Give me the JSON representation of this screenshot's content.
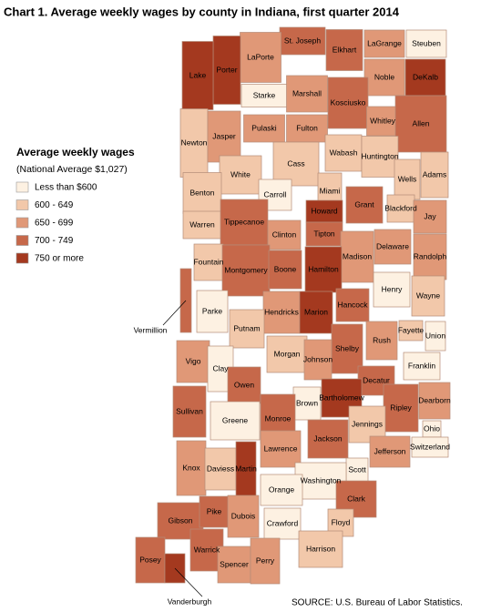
{
  "title": "Chart 1. Average weekly wages by county in Indiana, first quarter 2014",
  "legend": {
    "title": "Average weekly wages",
    "subtitle": "(National Average $1,027)",
    "items": [
      {
        "label": "Less than $600",
        "color": "#fdf1e2"
      },
      {
        "label": "600 - 649",
        "color": "#f2c8aa"
      },
      {
        "label": "650 - 699",
        "color": "#e09877"
      },
      {
        "label": "700 - 749",
        "color": "#c6684a"
      },
      {
        "label": "750 or more",
        "color": "#a4391f"
      }
    ]
  },
  "counties": [
    {
      "name": "Steuben",
      "class": 0
    },
    {
      "name": "LaGrange",
      "class": 2
    },
    {
      "name": "Elkhart",
      "class": 3
    },
    {
      "name": "St. Joseph",
      "class": 3
    },
    {
      "name": "LaPorte",
      "class": 2
    },
    {
      "name": "Porter",
      "class": 4
    },
    {
      "name": "Lake",
      "class": 4
    },
    {
      "name": "Noble",
      "class": 2
    },
    {
      "name": "DeKalb",
      "class": 4
    },
    {
      "name": "Starke",
      "class": 0
    },
    {
      "name": "Marshall",
      "class": 2
    },
    {
      "name": "Kosciusko",
      "class": 3
    },
    {
      "name": "Whitley",
      "class": 2
    },
    {
      "name": "Allen",
      "class": 3
    },
    {
      "name": "Newton",
      "class": 1
    },
    {
      "name": "Jasper",
      "class": 2
    },
    {
      "name": "Pulaski",
      "class": 2
    },
    {
      "name": "Fulton",
      "class": 2
    },
    {
      "name": "Wabash",
      "class": 1
    },
    {
      "name": "Huntington",
      "class": 1
    },
    {
      "name": "Adams",
      "class": 1
    },
    {
      "name": "Wells",
      "class": 1
    },
    {
      "name": "White",
      "class": 1
    },
    {
      "name": "Cass",
      "class": 1
    },
    {
      "name": "Miami",
      "class": 1
    },
    {
      "name": "Benton",
      "class": 1
    },
    {
      "name": "Carroll",
      "class": 0
    },
    {
      "name": "Howard",
      "class": 4
    },
    {
      "name": "Grant",
      "class": 3
    },
    {
      "name": "Blackford",
      "class": 1
    },
    {
      "name": "Jay",
      "class": 2
    },
    {
      "name": "Warren",
      "class": 1
    },
    {
      "name": "Tippecanoe",
      "class": 3
    },
    {
      "name": "Clinton",
      "class": 2
    },
    {
      "name": "Tipton",
      "class": 3
    },
    {
      "name": "Madison",
      "class": 2
    },
    {
      "name": "Delaware",
      "class": 2
    },
    {
      "name": "Randolph",
      "class": 2
    },
    {
      "name": "Fountain",
      "class": 1
    },
    {
      "name": "Montgomery",
      "class": 3
    },
    {
      "name": "Boone",
      "class": 3
    },
    {
      "name": "Hamilton",
      "class": 4
    },
    {
      "name": "Vermillion",
      "class": 3
    },
    {
      "name": "Henry",
      "class": 0
    },
    {
      "name": "Wayne",
      "class": 1
    },
    {
      "name": "Parke",
      "class": 0
    },
    {
      "name": "Hendricks",
      "class": 2
    },
    {
      "name": "Marion",
      "class": 4
    },
    {
      "name": "Hancock",
      "class": 3
    },
    {
      "name": "Putnam",
      "class": 1
    },
    {
      "name": "Fayette",
      "class": 1
    },
    {
      "name": "Union",
      "class": 0
    },
    {
      "name": "Rush",
      "class": 2
    },
    {
      "name": "Shelby",
      "class": 3
    },
    {
      "name": "Morgan",
      "class": 1
    },
    {
      "name": "Johnson",
      "class": 2
    },
    {
      "name": "Vigo",
      "class": 2
    },
    {
      "name": "Clay",
      "class": 0
    },
    {
      "name": "Franklin",
      "class": 0
    },
    {
      "name": "Owen",
      "class": 3
    },
    {
      "name": "Decatur",
      "class": 3
    },
    {
      "name": "Brown",
      "class": 0
    },
    {
      "name": "Bartholomew",
      "class": 4
    },
    {
      "name": "Dearborn",
      "class": 2
    },
    {
      "name": "Ripley",
      "class": 3
    },
    {
      "name": "Sullivan",
      "class": 3
    },
    {
      "name": "Greene",
      "class": 0
    },
    {
      "name": "Monroe",
      "class": 3
    },
    {
      "name": "Ohio",
      "class": 0
    },
    {
      "name": "Jennings",
      "class": 1
    },
    {
      "name": "Switzerland",
      "class": 0
    },
    {
      "name": "Lawrence",
      "class": 2
    },
    {
      "name": "Jackson",
      "class": 3
    },
    {
      "name": "Jefferson",
      "class": 2
    },
    {
      "name": "Knox",
      "class": 2
    },
    {
      "name": "Daviess",
      "class": 1
    },
    {
      "name": "Martin",
      "class": 4
    },
    {
      "name": "Scott",
      "class": 0
    },
    {
      "name": "Washington",
      "class": 0
    },
    {
      "name": "Orange",
      "class": 0
    },
    {
      "name": "Clark",
      "class": 3
    },
    {
      "name": "Gibson",
      "class": 3
    },
    {
      "name": "Pike",
      "class": 3
    },
    {
      "name": "Dubois",
      "class": 2
    },
    {
      "name": "Crawford",
      "class": 0
    },
    {
      "name": "Floyd",
      "class": 1
    },
    {
      "name": "Harrison",
      "class": 1
    },
    {
      "name": "Posey",
      "class": 3
    },
    {
      "name": "Vanderburgh",
      "class": 4
    },
    {
      "name": "Warrick",
      "class": 3
    },
    {
      "name": "Spencer",
      "class": 2
    },
    {
      "name": "Perry",
      "class": 2
    }
  ],
  "source": "SOURCE: U.S. Bureau of Labor Statistics."
}
